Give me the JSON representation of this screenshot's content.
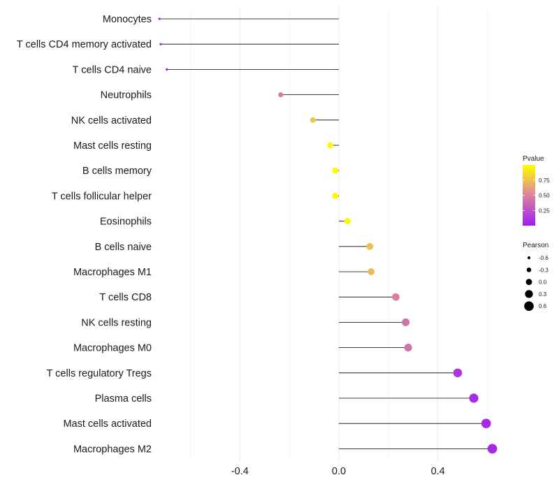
{
  "chart_data": {
    "type": "lollipop",
    "title": "",
    "xlabel": "",
    "ylabel": "",
    "xlim": [
      -0.72,
      0.72
    ],
    "x_ticks": [
      -0.4,
      0.0,
      0.4
    ],
    "x_tick_labels": [
      "-0.4",
      "0.0",
      "0.4"
    ],
    "minor_gridlines": [
      -0.6,
      -0.2,
      0.2,
      0.6
    ],
    "baseline": 0.0,
    "categories": [
      "Monocytes",
      "T cells CD4 memory activated",
      "T cells CD4 naive",
      "Neutrophils",
      "NK cells activated",
      "Mast cells resting",
      "B cells memory",
      "T cells follicular helper",
      "Eosinophils",
      "B cells naive",
      "Macrophages M1",
      "T cells CD8",
      "NK cells resting",
      "Macrophages M0",
      "T cells regulatory  Tregs ",
      "Plasma cells",
      "Mast cells activated",
      "Macrophages M2"
    ],
    "pearson": [
      -0.725,
      -0.72,
      -0.695,
      -0.235,
      -0.105,
      -0.035,
      -0.015,
      -0.015,
      0.035,
      0.125,
      0.13,
      0.23,
      0.27,
      0.28,
      0.48,
      0.545,
      0.595,
      0.62
    ],
    "pvalue": [
      0.01,
      0.01,
      0.02,
      0.45,
      0.78,
      0.97,
      0.98,
      0.98,
      0.96,
      0.74,
      0.72,
      0.48,
      0.42,
      0.42,
      0.12,
      0.08,
      0.06,
      0.05
    ],
    "legend_pvalue": {
      "title": "Pvalue",
      "ticks": [
        0.25,
        0.5,
        0.75
      ],
      "tick_labels": [
        "0.25",
        "0.50",
        "0.75"
      ],
      "range": [
        0.0,
        1.0
      ],
      "color_low": "#9F1EF0",
      "color_mid": "#DB83A0",
      "color_high": "#FFFF00"
    },
    "legend_pearson": {
      "title": "Pearson",
      "values": [
        -0.6,
        -0.3,
        0.0,
        0.3,
        0.6
      ],
      "labels": [
        "-0.6",
        "-0.3",
        "0.0",
        "0.3",
        "0.6"
      ]
    },
    "legend_placement": "right"
  }
}
